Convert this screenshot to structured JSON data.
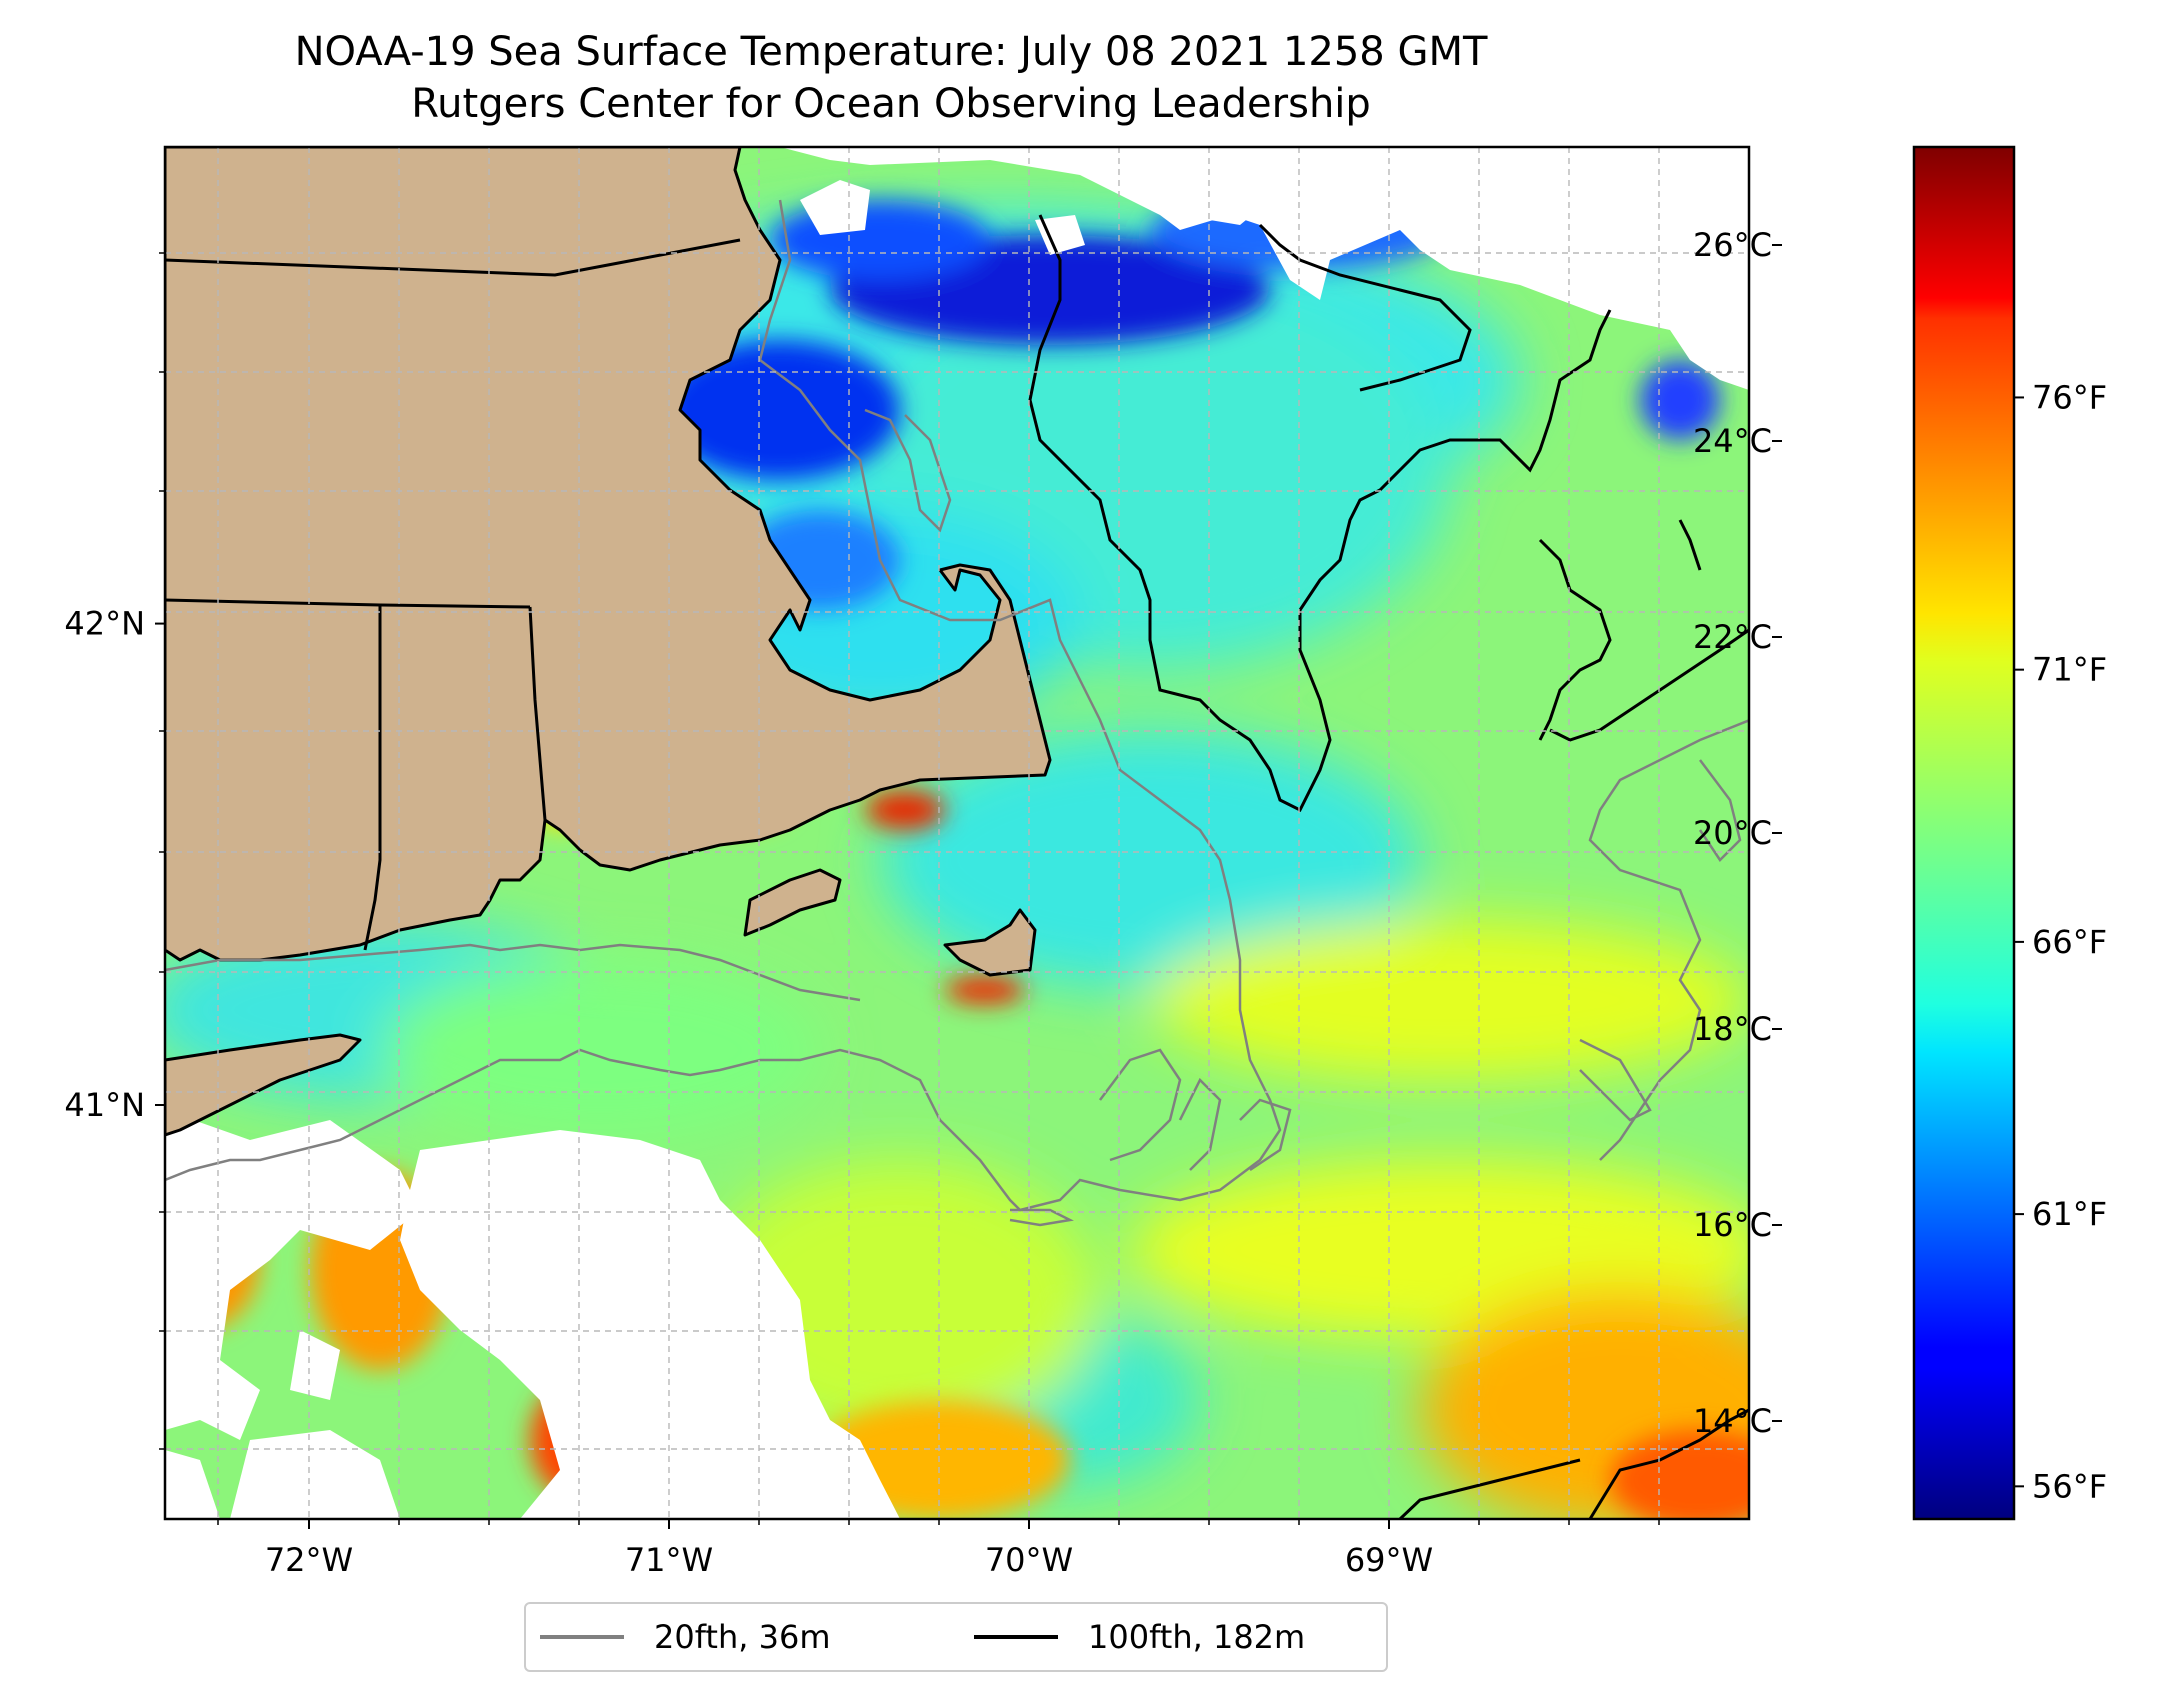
{
  "title": {
    "line1": "NOAA-19 Sea Surface Temperature: July 08 2021 1258 GMT",
    "line2": "Rutgers Center for Ocean Observing Leadership"
  },
  "map": {
    "lon_range": [
      -72.4,
      -68.0
    ],
    "lat_range": [
      40.14,
      42.99
    ],
    "lon_ticks": [
      {
        "value": -72,
        "label": "72°W"
      },
      {
        "value": -71,
        "label": "71°W"
      },
      {
        "value": -70,
        "label": "70°W"
      },
      {
        "value": -69,
        "label": "69°W"
      }
    ],
    "lat_ticks": [
      {
        "value": 42,
        "label": "42°N"
      },
      {
        "value": 41,
        "label": "41°N"
      }
    ],
    "grid": true,
    "land_color": "#cfb28e"
  },
  "colorbar": {
    "colormap": "jet",
    "range_c": [
      13.0,
      27.0
    ],
    "celsius_ticks": [
      {
        "value": 14,
        "label": "14°C"
      },
      {
        "value": 16,
        "label": "16°C"
      },
      {
        "value": 18,
        "label": "18°C"
      },
      {
        "value": 20,
        "label": "20°C"
      },
      {
        "value": 22,
        "label": "22°C"
      },
      {
        "value": 24,
        "label": "24°C"
      },
      {
        "value": 26,
        "label": "26°C"
      }
    ],
    "fahrenheit_ticks": [
      {
        "value": 56,
        "label": "56°F"
      },
      {
        "value": 61,
        "label": "61°F"
      },
      {
        "value": 66,
        "label": "66°F"
      },
      {
        "value": 71,
        "label": "71°F"
      },
      {
        "value": 76,
        "label": "76°F"
      }
    ]
  },
  "legend": {
    "placement": "bottom-center",
    "items": [
      {
        "label": "20fth, 36m",
        "color": "#808080"
      },
      {
        "label": "100fth, 182m",
        "color": "#000000"
      }
    ]
  },
  "colors": {
    "cold": "#00008b",
    "cool": "#00e5ff",
    "mid": "#7fff7f",
    "warm": "#ffd700",
    "hot": "#ff3300"
  }
}
